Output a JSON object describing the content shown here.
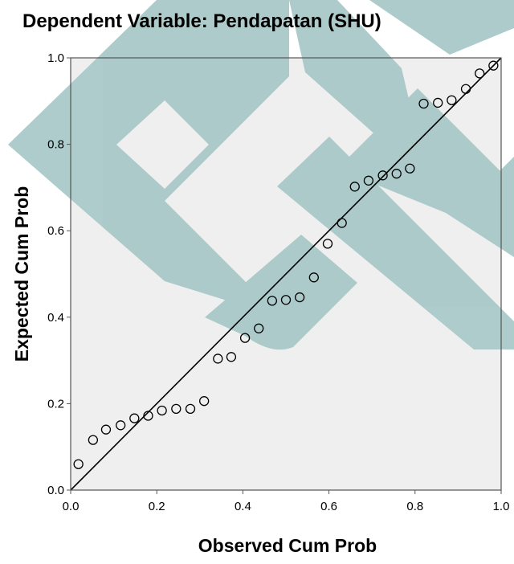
{
  "chart_data": {
    "type": "scatter",
    "title": "Dependent Variable: Pendapatan (SHU)",
    "xlabel": "Observed Cum Prob",
    "ylabel": "Expected Cum Prob",
    "xlim": [
      0.0,
      1.0
    ],
    "ylim": [
      0.0,
      1.0
    ],
    "x_ticks": [
      "0.0",
      "0.2",
      "0.4",
      "0.6",
      "0.8",
      "1.0"
    ],
    "y_ticks": [
      "0.0",
      "0.2",
      "0.4",
      "0.6",
      "0.8",
      "1.0"
    ],
    "grid": false,
    "reference_line": {
      "from": [
        0.0,
        0.0
      ],
      "to": [
        1.0,
        1.0
      ]
    },
    "colors": {
      "plot_background": "#efefef",
      "markers": "#000000",
      "reference_line": "#000000",
      "watermark": "#a9c9c8"
    },
    "points": [
      {
        "x": 0.018,
        "y": 0.06
      },
      {
        "x": 0.052,
        "y": 0.116
      },
      {
        "x": 0.082,
        "y": 0.14
      },
      {
        "x": 0.116,
        "y": 0.15
      },
      {
        "x": 0.148,
        "y": 0.166
      },
      {
        "x": 0.18,
        "y": 0.172
      },
      {
        "x": 0.212,
        "y": 0.184
      },
      {
        "x": 0.245,
        "y": 0.188
      },
      {
        "x": 0.278,
        "y": 0.188
      },
      {
        "x": 0.31,
        "y": 0.206
      },
      {
        "x": 0.342,
        "y": 0.304
      },
      {
        "x": 0.373,
        "y": 0.308
      },
      {
        "x": 0.405,
        "y": 0.352
      },
      {
        "x": 0.437,
        "y": 0.374
      },
      {
        "x": 0.468,
        "y": 0.438
      },
      {
        "x": 0.5,
        "y": 0.44
      },
      {
        "x": 0.532,
        "y": 0.446
      },
      {
        "x": 0.565,
        "y": 0.492
      },
      {
        "x": 0.597,
        "y": 0.57
      },
      {
        "x": 0.63,
        "y": 0.618
      },
      {
        "x": 0.66,
        "y": 0.702
      },
      {
        "x": 0.692,
        "y": 0.716
      },
      {
        "x": 0.725,
        "y": 0.728
      },
      {
        "x": 0.757,
        "y": 0.732
      },
      {
        "x": 0.788,
        "y": 0.744
      },
      {
        "x": 0.82,
        "y": 0.894
      },
      {
        "x": 0.853,
        "y": 0.896
      },
      {
        "x": 0.885,
        "y": 0.902
      },
      {
        "x": 0.918,
        "y": 0.928
      },
      {
        "x": 0.95,
        "y": 0.964
      },
      {
        "x": 0.982,
        "y": 0.982
      }
    ]
  }
}
